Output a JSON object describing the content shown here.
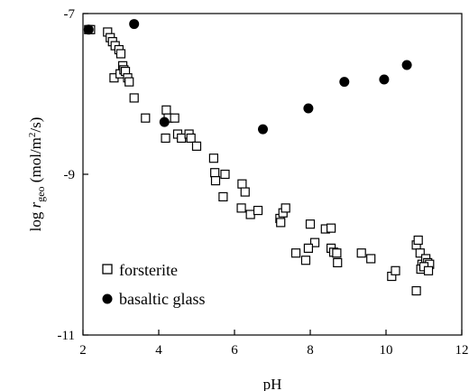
{
  "chart_data": {
    "type": "scatter",
    "title": "",
    "xlabel": "pH",
    "ylabel": {
      "prefix": "log ",
      "symbol": "r",
      "subscript": "geo",
      "unit_before_sup": " (mol/m",
      "superscript": "2",
      "unit_after_sup": "/s)"
    },
    "xlim": [
      2,
      12
    ],
    "ylim": [
      -11,
      -7
    ],
    "xticks": [
      "2",
      "4",
      "6",
      "8",
      "10",
      "12"
    ],
    "yticks": [
      "-7",
      "-9",
      "-11"
    ],
    "xtick_values": [
      2,
      4,
      6,
      8,
      10,
      12
    ],
    "ytick_values": [
      -7,
      -9,
      -11
    ],
    "grid": false,
    "legend_position": "bottom-left",
    "series": [
      {
        "name": "forsterite",
        "marker": "open-square",
        "color": "#000000",
        "points": [
          [
            2.15,
            -7.2
          ],
          [
            2.2,
            -7.2
          ],
          [
            2.65,
            -7.23
          ],
          [
            2.72,
            -7.3
          ],
          [
            2.78,
            -7.35
          ],
          [
            2.85,
            -7.4
          ],
          [
            2.95,
            -7.45
          ],
          [
            3.0,
            -7.5
          ],
          [
            2.82,
            -7.8
          ],
          [
            2.98,
            -7.75
          ],
          [
            3.05,
            -7.65
          ],
          [
            3.08,
            -7.7
          ],
          [
            3.12,
            -7.72
          ],
          [
            3.18,
            -7.8
          ],
          [
            3.22,
            -7.85
          ],
          [
            3.35,
            -8.05
          ],
          [
            3.65,
            -8.3
          ],
          [
            4.2,
            -8.2
          ],
          [
            4.25,
            -8.3
          ],
          [
            4.42,
            -8.3
          ],
          [
            4.18,
            -8.55
          ],
          [
            4.5,
            -8.5
          ],
          [
            4.6,
            -8.55
          ],
          [
            4.8,
            -8.5
          ],
          [
            4.85,
            -8.55
          ],
          [
            5.0,
            -8.65
          ],
          [
            5.45,
            -8.8
          ],
          [
            5.48,
            -8.98
          ],
          [
            5.5,
            -9.08
          ],
          [
            5.75,
            -9.0
          ],
          [
            5.7,
            -9.28
          ],
          [
            6.2,
            -9.12
          ],
          [
            6.28,
            -9.22
          ],
          [
            6.18,
            -9.42
          ],
          [
            6.42,
            -9.5
          ],
          [
            6.62,
            -9.45
          ],
          [
            7.2,
            -9.55
          ],
          [
            7.22,
            -9.6
          ],
          [
            7.28,
            -9.48
          ],
          [
            7.35,
            -9.42
          ],
          [
            8.0,
            -9.62
          ],
          [
            8.12,
            -9.85
          ],
          [
            7.95,
            -9.92
          ],
          [
            7.62,
            -9.98
          ],
          [
            7.88,
            -10.07
          ],
          [
            8.4,
            -9.68
          ],
          [
            8.55,
            -9.67
          ],
          [
            8.55,
            -9.92
          ],
          [
            8.62,
            -9.97
          ],
          [
            8.7,
            -9.98
          ],
          [
            8.72,
            -10.1
          ],
          [
            9.35,
            -9.98
          ],
          [
            9.6,
            -10.05
          ],
          [
            10.15,
            -10.27
          ],
          [
            10.25,
            -10.2
          ],
          [
            10.8,
            -9.88
          ],
          [
            10.85,
            -9.82
          ],
          [
            10.9,
            -9.98
          ],
          [
            10.95,
            -10.12
          ],
          [
            11.05,
            -10.05
          ],
          [
            11.1,
            -10.1
          ],
          [
            11.15,
            -10.12
          ],
          [
            10.92,
            -10.18
          ],
          [
            11.0,
            -10.15
          ],
          [
            11.12,
            -10.2
          ],
          [
            10.8,
            -10.45
          ]
        ]
      },
      {
        "name": "basaltic glass",
        "marker": "filled-circle",
        "color": "#000000",
        "points": [
          [
            2.15,
            -7.2
          ],
          [
            3.35,
            -7.13
          ],
          [
            4.15,
            -8.35
          ],
          [
            6.75,
            -8.44
          ],
          [
            7.95,
            -8.18
          ],
          [
            8.9,
            -7.85
          ],
          [
            9.95,
            -7.82
          ],
          [
            10.55,
            -7.64
          ]
        ]
      }
    ]
  }
}
